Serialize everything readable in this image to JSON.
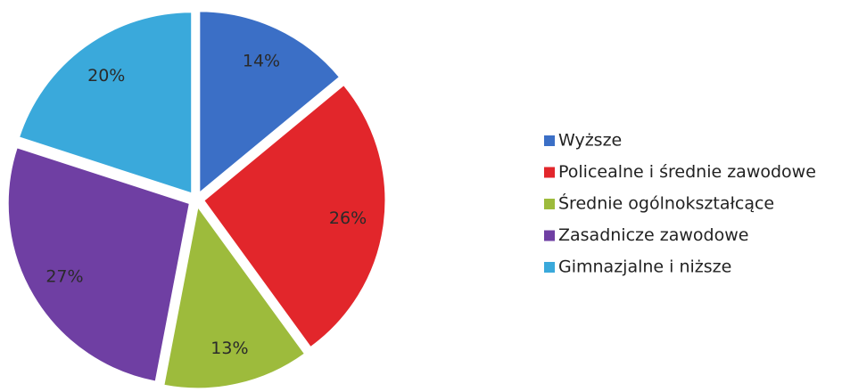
{
  "chart_data": {
    "type": "pie",
    "categories": [
      "Wyższe",
      "Policealne i średnie zawodowe",
      "Średnie ogólnokształcące",
      "Zasadnicze zawodowe",
      "Gimnazjalne i niższe"
    ],
    "values": [
      14,
      26,
      13,
      27,
      20
    ],
    "value_labels": [
      "14%",
      "26%",
      "13%",
      "27%",
      "20%"
    ],
    "colors": [
      "#3b6fc6",
      "#e2262b",
      "#9dbb3c",
      "#6f3fa3",
      "#3aa9db"
    ],
    "legend": "right"
  }
}
